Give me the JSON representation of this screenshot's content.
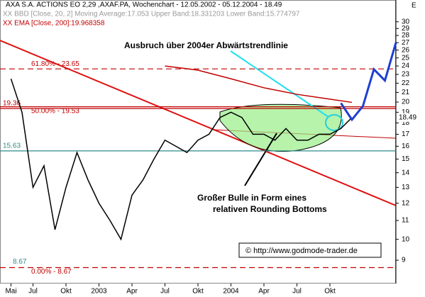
{
  "chart_data": {
    "type": "line",
    "scale": "log",
    "title": "AXA S.A. ACTIONS EO 2,29 ,AXAF.PA, Wochenchart - 12.05.2002 - 05.12.2004 - 18.49",
    "subtitle": "XX BBD [Close, 20, 2] Moving Average:17.053 Upper Band:18.331203 Lower Band:15.774797",
    "ema_label": "XX EMA [Close, 200]:19.968358",
    "corner_label": "E",
    "annotations": [
      "Ausbruch über 2004er Abwärtstrendlinie",
      "Großer Bulle in Form eines",
      "relativen Rounding Bottoms"
    ],
    "copyright": "© http://www.godmode-trader.de",
    "xlim": [
      "2002-04",
      "2005-04"
    ],
    "xticks": [
      {
        "value": "2002-05",
        "label": "Mai"
      },
      {
        "value": "2002-07",
        "label": "Jul"
      },
      {
        "value": "2002-10",
        "label": "Okt"
      },
      {
        "value": "2003-01",
        "label": "2003"
      },
      {
        "value": "2003-04",
        "label": "Apr"
      },
      {
        "value": "2003-07",
        "label": "Jul"
      },
      {
        "value": "2003-10",
        "label": "Okt"
      },
      {
        "value": "2004-01",
        "label": "2004"
      },
      {
        "value": "2004-04",
        "label": "Apr"
      },
      {
        "value": "2004-07",
        "label": "Jul"
      },
      {
        "value": "2004-10",
        "label": "Okt"
      }
    ],
    "ylim": [
      8,
      31.4
    ],
    "yticks": [
      9,
      10,
      11,
      12,
      13,
      14,
      15,
      16,
      17,
      18,
      19,
      20,
      21,
      22,
      23,
      24,
      25,
      26,
      27,
      28,
      29,
      30
    ],
    "levels": [
      {
        "value": 23.65,
        "label": "61.80% - 23.65",
        "style": "dashed",
        "color": "#c00000"
      },
      {
        "value": 19.36,
        "label": "19.36",
        "style": "solid",
        "color": "#c00000"
      },
      {
        "value": 19.53,
        "label": "50.00% - 19.53",
        "style": "solid",
        "color": "#c00000"
      },
      {
        "value": 15.63,
        "label": "15.63",
        "style": "solid",
        "color": "#2e8b8b"
      },
      {
        "value": 8.67,
        "label": "0.00% - 8.67",
        "style": "dashed",
        "color": "#c00000"
      }
    ],
    "low_label": "8.67",
    "series": [
      {
        "name": "Close",
        "color": "#000000",
        "x": [
          "2002-05",
          "2002-06",
          "2002-07",
          "2002-08",
          "2002-09",
          "2002-10",
          "2002-11",
          "2002-12",
          "2003-01",
          "2003-02",
          "2003-03",
          "2003-04",
          "2003-05",
          "2003-06",
          "2003-07",
          "2003-08",
          "2003-09",
          "2003-10",
          "2003-11",
          "2003-12",
          "2004-01",
          "2004-02",
          "2004-03",
          "2004-04",
          "2004-05",
          "2004-06",
          "2004-07",
          "2004-08",
          "2004-09",
          "2004-10",
          "2004-11",
          "2004-12"
        ],
        "values": [
          22.5,
          19,
          13,
          14.5,
          10.5,
          13,
          15.5,
          13.5,
          12,
          11,
          10,
          12.5,
          13.5,
          15,
          16.5,
          16,
          15.5,
          16.5,
          17,
          18.5,
          19,
          18.5,
          17,
          17,
          16.5,
          17.5,
          16.5,
          16.5,
          17,
          17,
          17.5,
          18.49
        ]
      },
      {
        "name": "EMA",
        "color": "#c00000",
        "x": [
          "2003-07",
          "2003-10",
          "2004-01",
          "2004-04",
          "2004-07",
          "2004-10",
          "2004-12"
        ],
        "values": [
          24,
          23.5,
          22.5,
          21.5,
          20.8,
          20.3,
          19.97
        ]
      },
      {
        "name": "Prognose",
        "color": "#1f3fd0",
        "x": [
          "2004-11",
          "2004-12",
          "2005-01",
          "2005-02",
          "2005-03",
          "2005-04"
        ],
        "values": [
          19.9,
          18.3,
          19.6,
          23.6,
          22.3,
          27
        ]
      }
    ]
  }
}
